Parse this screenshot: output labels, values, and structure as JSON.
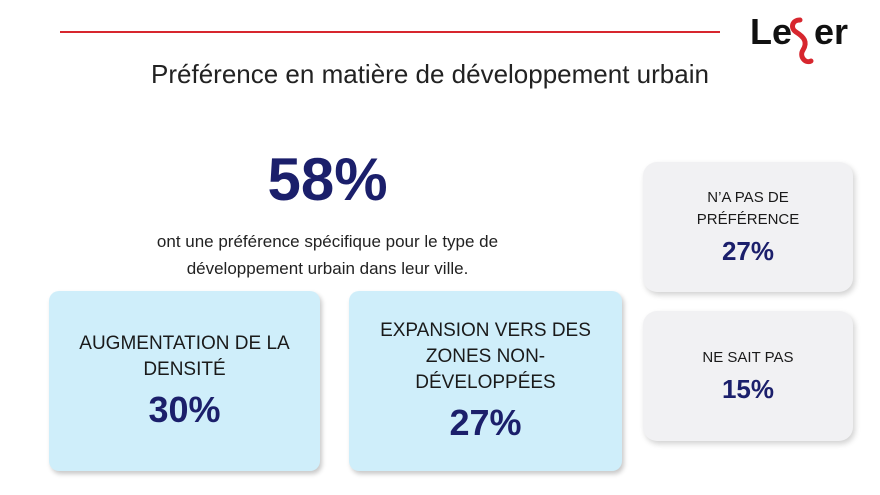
{
  "header": {
    "logo_text": "Leger",
    "title": "Préférence en matière de développement urbain"
  },
  "summary": {
    "percent": "58%",
    "description": "ont une préférence spécifique pour le type de développement urbain dans leur ville."
  },
  "cards": [
    {
      "label": "AUGMENTATION DE LA DENSITÉ",
      "value": "30%"
    },
    {
      "label": "EXPANSION VERS DES ZONES NON-DÉVELOPPÉES",
      "value": "27%"
    },
    {
      "label": "N’A PAS DE PRÉFÉRENCE",
      "value": "27%"
    },
    {
      "label": "NE SAIT PAS",
      "value": "15%"
    }
  ],
  "colors": {
    "accent_red": "#d7262e",
    "navy": "#1b1f6b",
    "card_blue": "#cfeefa",
    "card_grey": "#f1f1f3"
  }
}
